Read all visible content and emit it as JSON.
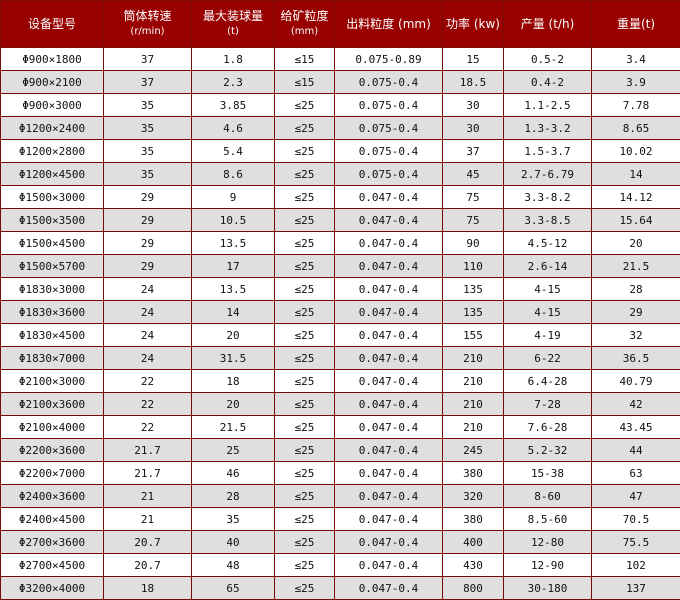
{
  "table": {
    "headers": [
      {
        "label": "设备型号",
        "unit": ""
      },
      {
        "label": "筒体转速",
        "unit": "(r/min)"
      },
      {
        "label": "最大装球量",
        "unit": "(t)"
      },
      {
        "label": "给矿粒度",
        "unit": "(mm)"
      },
      {
        "label": "出料粒度 (mm)",
        "unit": ""
      },
      {
        "label": "功率 (kw)",
        "unit": ""
      },
      {
        "label": "产量 (t/h)",
        "unit": ""
      },
      {
        "label": "重量(t)",
        "unit": ""
      }
    ],
    "rows": [
      [
        "Φ900×1800",
        "37",
        "1.8",
        "≤15",
        "0.075-0.89",
        "15",
        "0.5-2",
        "3.4"
      ],
      [
        "Φ900×2100",
        "37",
        "2.3",
        "≤15",
        "0.075-0.4",
        "18.5",
        "0.4-2",
        "3.9"
      ],
      [
        "Φ900×3000",
        "35",
        "3.85",
        "≤25",
        "0.075-0.4",
        "30",
        "1.1-2.5",
        "7.78"
      ],
      [
        "Φ1200×2400",
        "35",
        "4.6",
        "≤25",
        "0.075-0.4",
        "30",
        "1.3-3.2",
        "8.65"
      ],
      [
        "Φ1200×2800",
        "35",
        "5.4",
        "≤25",
        "0.075-0.4",
        "37",
        "1.5-3.7",
        "10.02"
      ],
      [
        "Φ1200×4500",
        "35",
        "8.6",
        "≤25",
        "0.075-0.4",
        "45",
        "2.7-6.79",
        "14"
      ],
      [
        "Φ1500×3000",
        "29",
        "9",
        "≤25",
        "0.047-0.4",
        "75",
        "3.3-8.2",
        "14.12"
      ],
      [
        "Φ1500×3500",
        "29",
        "10.5",
        "≤25",
        "0.047-0.4",
        "75",
        "3.3-8.5",
        "15.64"
      ],
      [
        "Φ1500×4500",
        "29",
        "13.5",
        "≤25",
        "0.047-0.4",
        "90",
        "4.5-12",
        "20"
      ],
      [
        "Φ1500×5700",
        "29",
        "17",
        "≤25",
        "0.047-0.4",
        "110",
        "2.6-14",
        "21.5"
      ],
      [
        "Φ1830×3000",
        "24",
        "13.5",
        "≤25",
        "0.047-0.4",
        "135",
        "4-15",
        "28"
      ],
      [
        "Φ1830×3600",
        "24",
        "14",
        "≤25",
        "0.047-0.4",
        "135",
        "4-15",
        "29"
      ],
      [
        "Φ1830×4500",
        "24",
        "20",
        "≤25",
        "0.047-0.4",
        "155",
        "4-19",
        "32"
      ],
      [
        "Φ1830×7000",
        "24",
        "31.5",
        "≤25",
        "0.047-0.4",
        "210",
        "6-22",
        "36.5"
      ],
      [
        "Φ2100×3000",
        "22",
        "18",
        "≤25",
        "0.047-0.4",
        "210",
        "6.4-28",
        "40.79"
      ],
      [
        "Φ2100x3600",
        "22",
        "20",
        "≤25",
        "0.047-0.4",
        "210",
        "7-28",
        "42"
      ],
      [
        "Φ2100×4000",
        "22",
        "21.5",
        "≤25",
        "0.047-0.4",
        "210",
        "7.6-28",
        "43.45"
      ],
      [
        "Φ2200×3600",
        "21.7",
        "25",
        "≤25",
        "0.047-0.4",
        "245",
        "5.2-32",
        "44"
      ],
      [
        "Φ2200×7000",
        "21.7",
        "46",
        "≤25",
        "0.047-0.4",
        "380",
        "15-38",
        "63"
      ],
      [
        "Φ2400×3600",
        "21",
        "28",
        "≤25",
        "0.047-0.4",
        "320",
        "8-60",
        "47"
      ],
      [
        "Φ2400×4500",
        "21",
        "35",
        "≤25",
        "0.047-0.4",
        "380",
        "8.5-60",
        "70.5"
      ],
      [
        "Φ2700×3600",
        "20.7",
        "40",
        "≤25",
        "0.047-0.4",
        "400",
        "12-80",
        "75.5"
      ],
      [
        "Φ2700×4500",
        "20.7",
        "48",
        "≤25",
        "0.047-0.4",
        "430",
        "12-90",
        "102"
      ],
      [
        "Φ3200×4000",
        "18",
        "65",
        "≤25",
        "0.047-0.4",
        "800",
        "30-180",
        "137"
      ]
    ]
  },
  "colors": {
    "header_bg": "#990000",
    "border": "#7a0a0a",
    "row_alt": "#dfdfdf"
  }
}
